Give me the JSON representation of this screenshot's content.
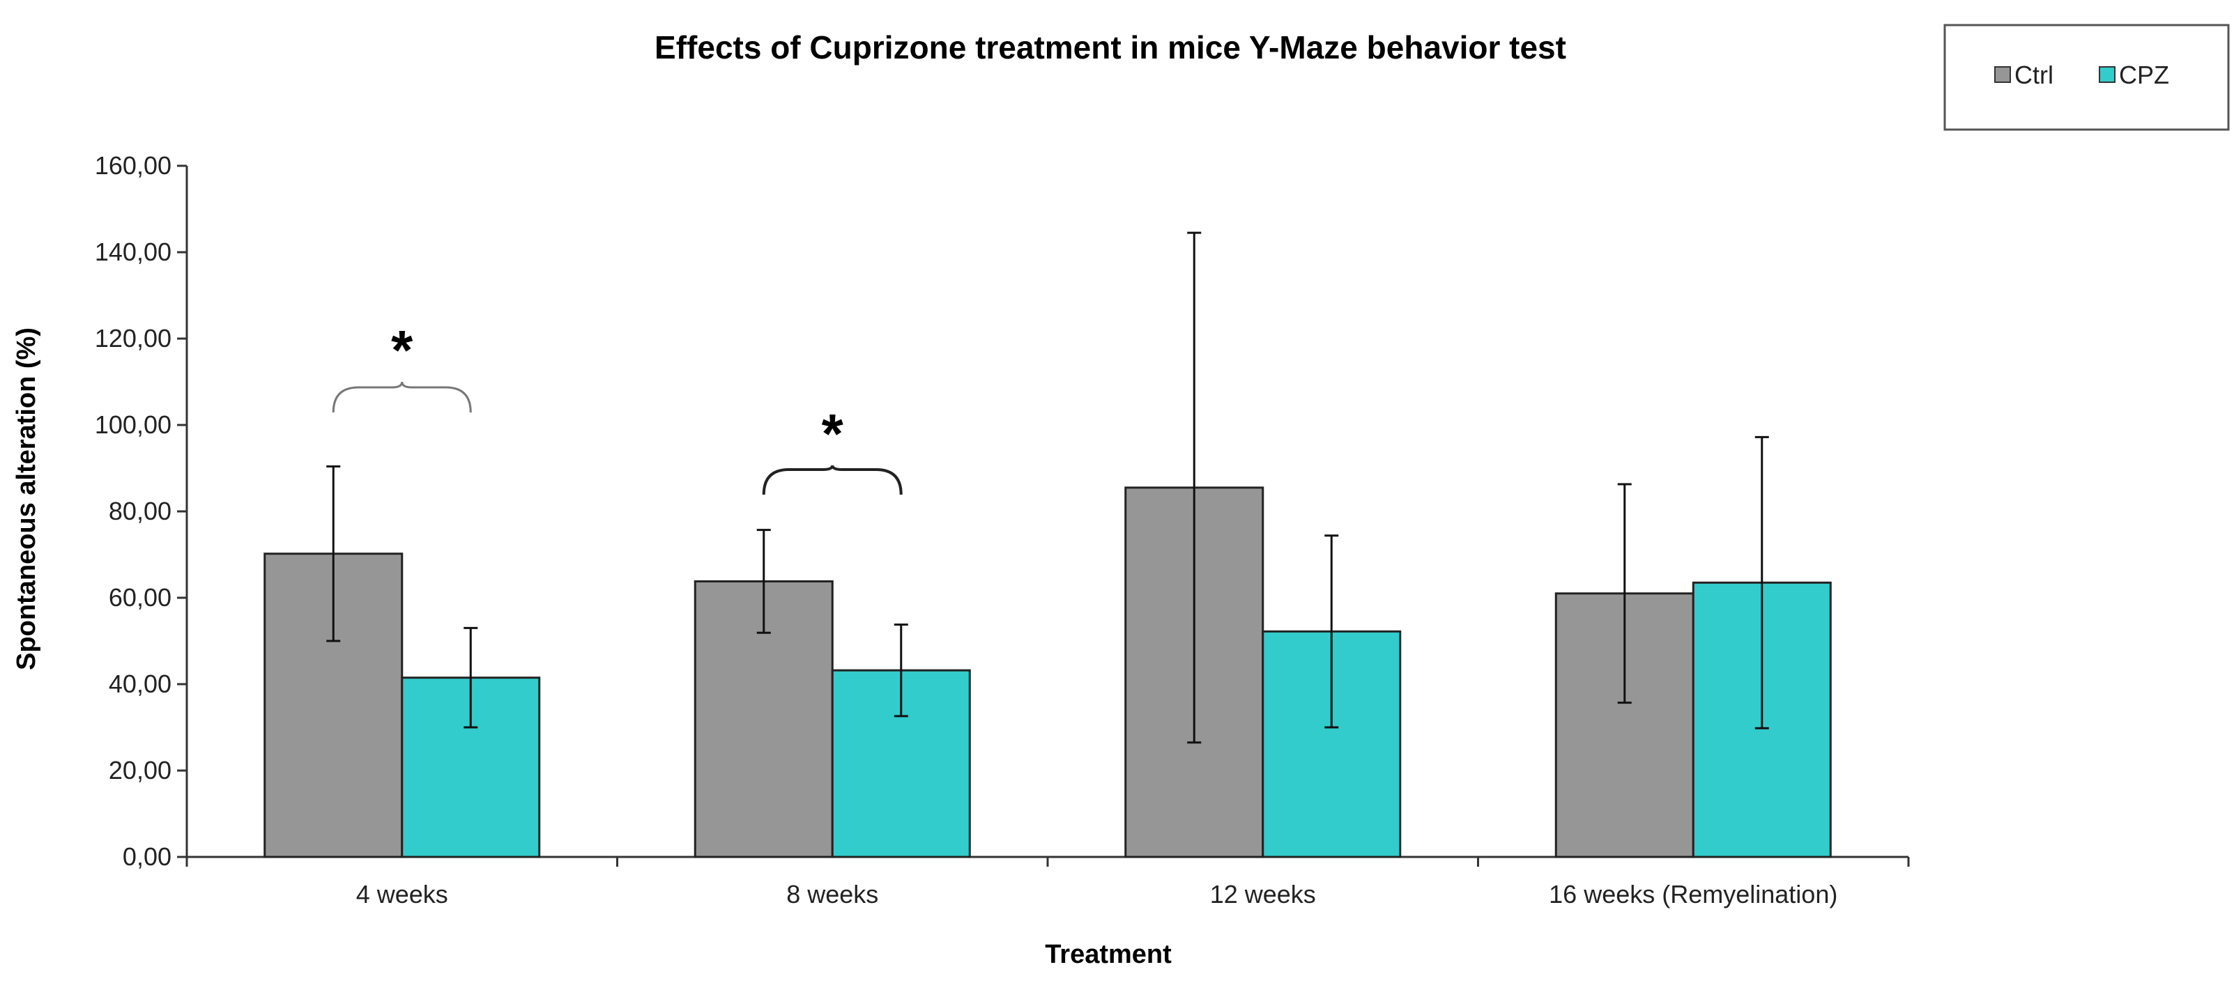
{
  "chart_data": {
    "type": "bar",
    "title": "Effects of Cuprizone treatment in mice Y-Maze behavior test",
    "xlabel": "Treatment",
    "ylabel": "Spontaneous alteration (%)",
    "categories": [
      "4 weeks",
      "8 weeks",
      "12 weeks",
      "16 weeks (Remyelination)"
    ],
    "ylim": [
      0,
      160
    ],
    "yticks": [
      0,
      20,
      40,
      60,
      80,
      100,
      120,
      140,
      160
    ],
    "ytick_labels": [
      "0,00",
      "20,00",
      "40,00",
      "60,00",
      "80,00",
      "100,00",
      "120,00",
      "140,00",
      "160,00"
    ],
    "series": [
      {
        "name": "Ctrl",
        "color": "#969696",
        "values": [
          70.2,
          63.8,
          85.5,
          61.0
        ],
        "errors": [
          20.2,
          11.9,
          59.0,
          25.3
        ]
      },
      {
        "name": "CPZ",
        "color": "#33CCCC",
        "values": [
          41.5,
          43.2,
          52.2,
          63.5
        ],
        "errors": [
          11.5,
          10.6,
          22.2,
          33.7
        ]
      }
    ],
    "significance": [
      {
        "category": "4 weeks",
        "label": "*"
      },
      {
        "category": "8 weeks",
        "label": "*"
      }
    ],
    "legend": "top-right",
    "grid": false
  }
}
